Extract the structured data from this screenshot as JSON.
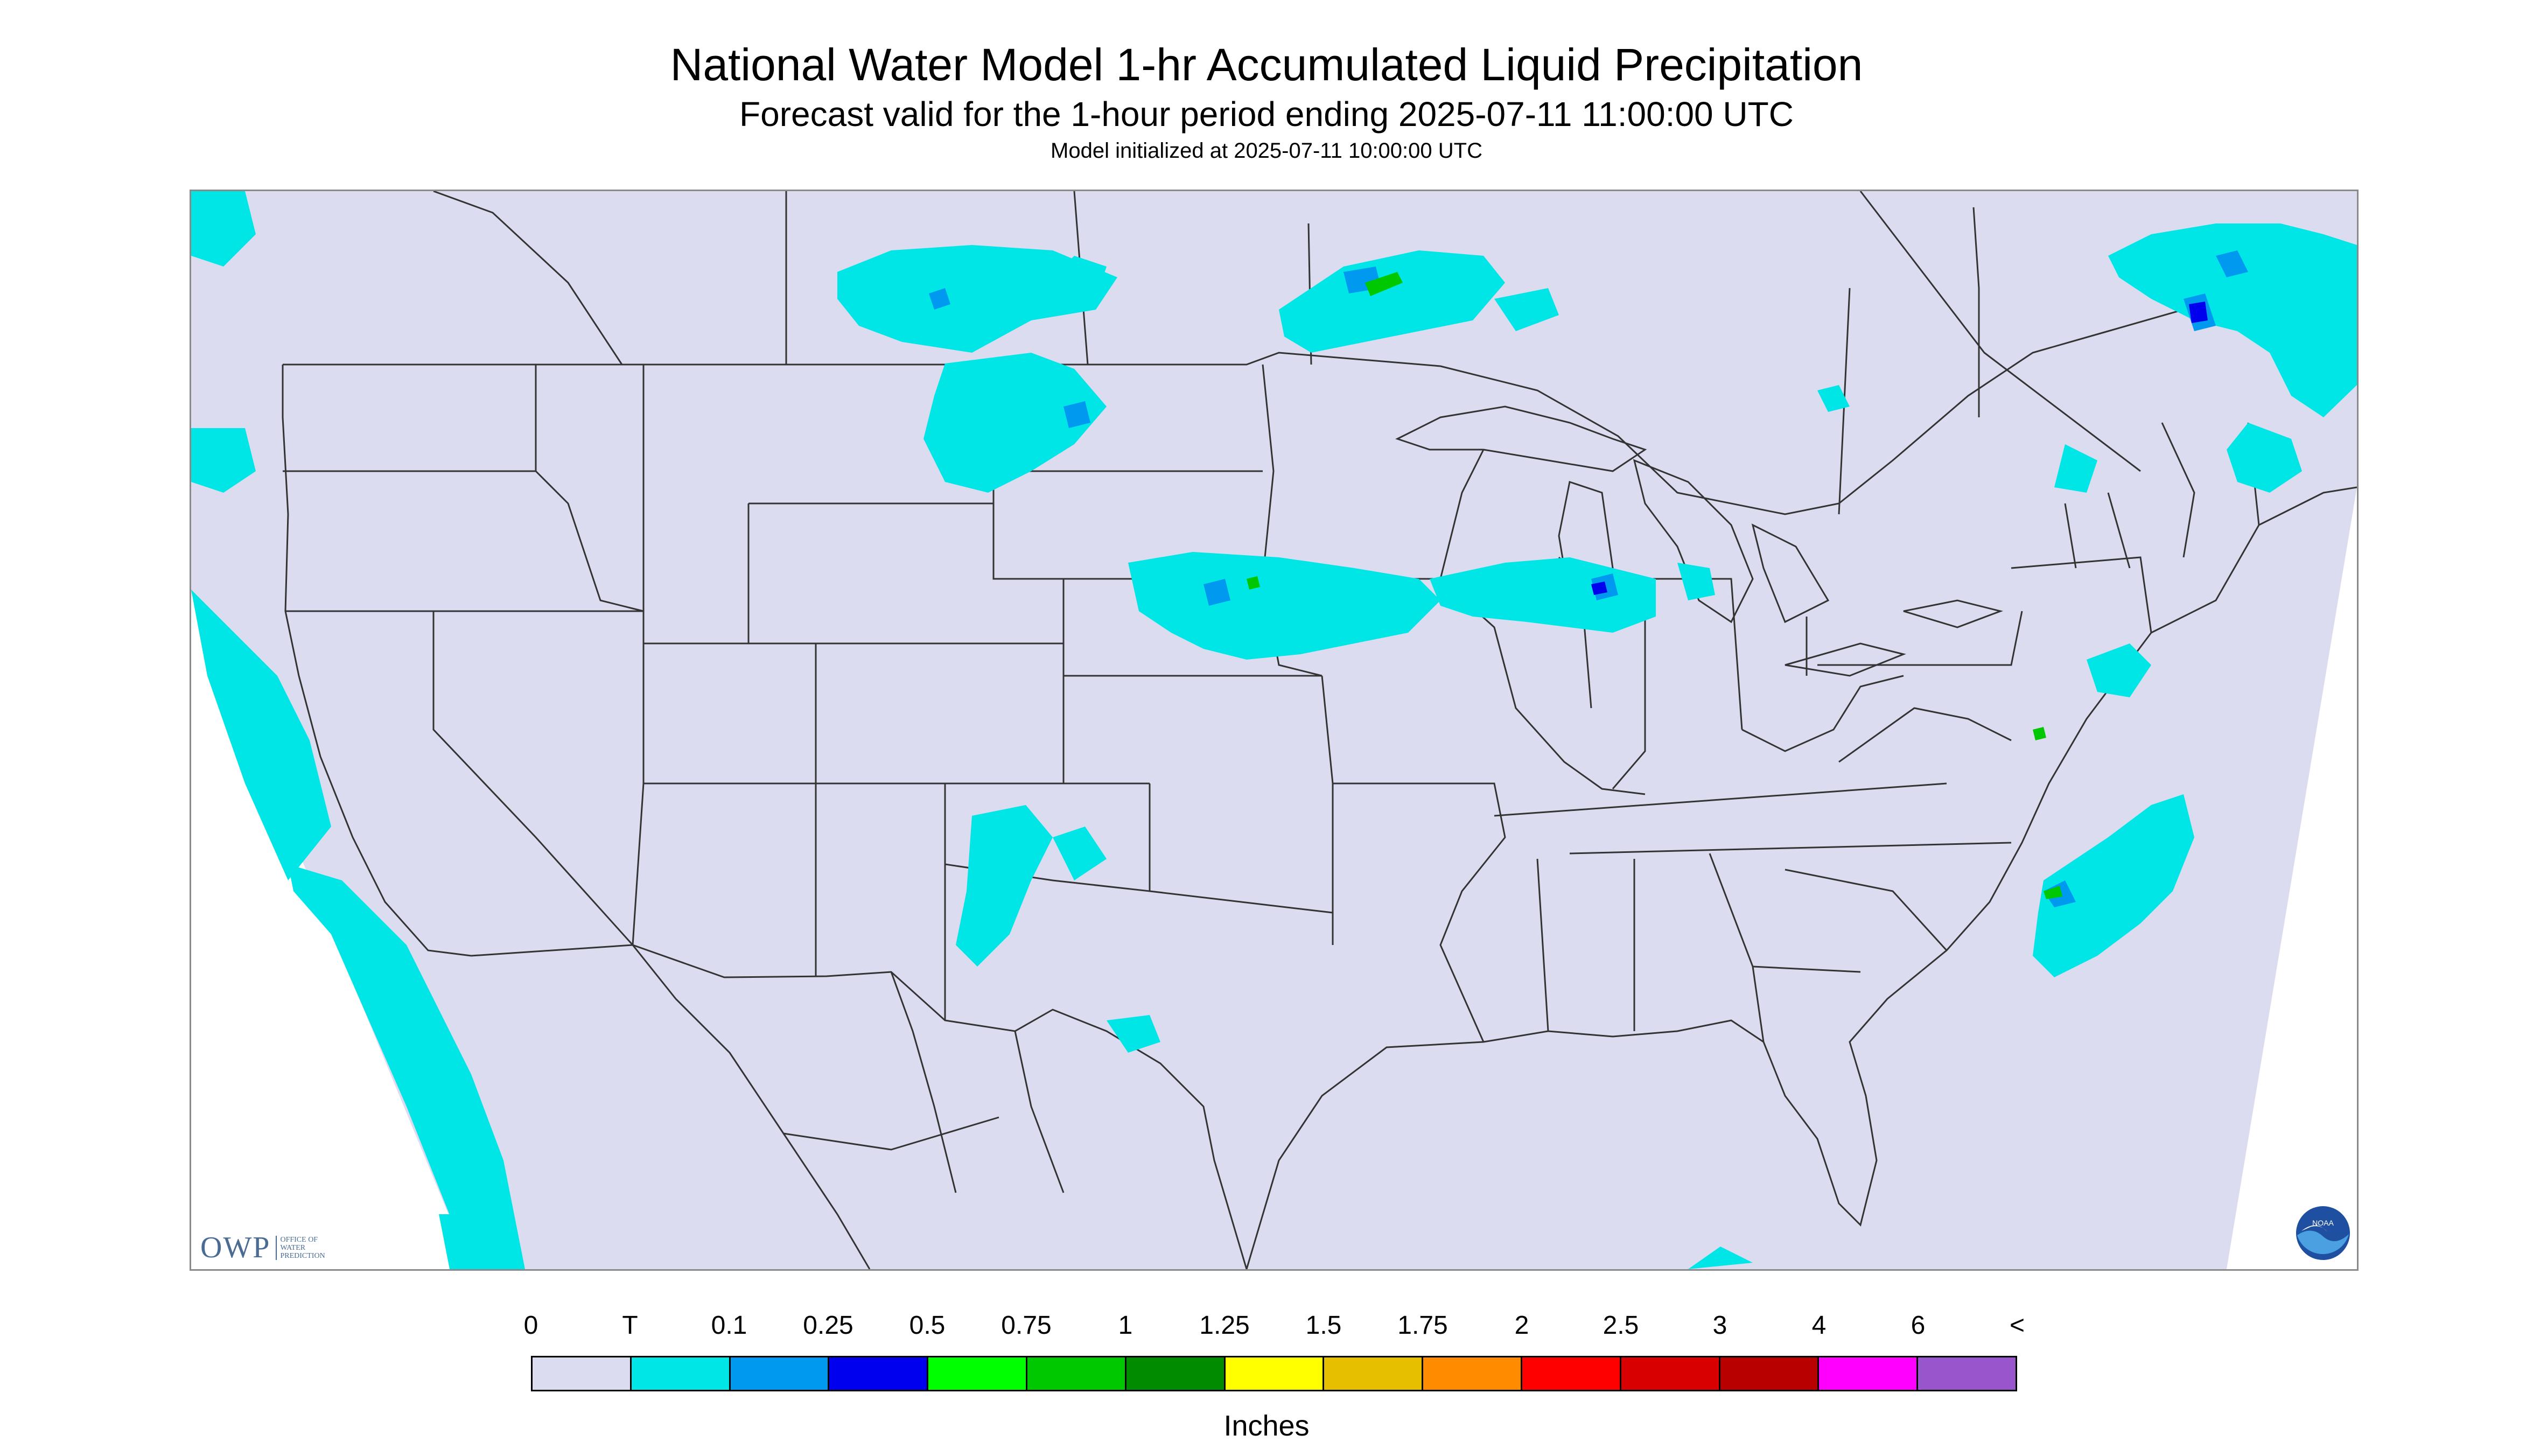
{
  "title": "National Water Model 1-hr Accumulated Liquid Precipitation",
  "subtitle": "Forecast valid for the 1-hour period ending 2025-07-11 11:00:00 UTC",
  "init_line": "Model initialized at 2025-07-11 10:00:00 UTC",
  "colors": {
    "no_data": "#ffffff",
    "background": "#dcdcf0",
    "borders": "#333333"
  },
  "legend": {
    "labels": [
      "0",
      "T",
      "0.1",
      "0.25",
      "0.5",
      "0.75",
      "1",
      "1.25",
      "1.5",
      "1.75",
      "2",
      "2.5",
      "3",
      "4",
      "6",
      "<"
    ],
    "swatches": [
      "#dcdcf0",
      "#00e5e5",
      "#0099f0",
      "#0000ee",
      "#00ff00",
      "#00c800",
      "#008c00",
      "#ffff00",
      "#e6c000",
      "#ff8c00",
      "#ff0000",
      "#d80000",
      "#b80000",
      "#ff00ff",
      "#9955cc"
    ],
    "units": "Inches"
  },
  "logos": {
    "owp_text": "OWP",
    "owp_small": "OFFICE OF WATER PREDICTION",
    "noaa_text": "NOAA"
  }
}
